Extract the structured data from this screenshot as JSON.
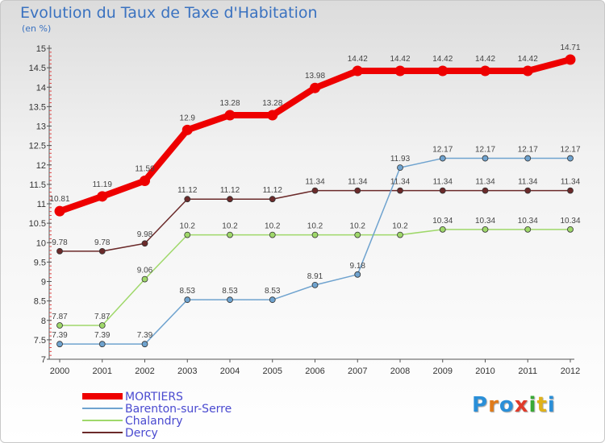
{
  "title": "Evolution du Taux de Taxe d'Habitation",
  "unit": "(en %)",
  "logo": {
    "text": "Proxiti",
    "letters": [
      {
        "ch": "P",
        "color": "#2a8fd8"
      },
      {
        "ch": "r",
        "color": "#e07b1a"
      },
      {
        "ch": "o",
        "color": "#2a8fd8"
      },
      {
        "ch": "x",
        "color": "#e03a2a"
      },
      {
        "ch": "i",
        "color": "#3aaa35"
      },
      {
        "ch": "t",
        "color": "#e0b21a"
      },
      {
        "ch": "i",
        "color": "#2a8fd8"
      }
    ]
  },
  "chart_data": {
    "type": "line",
    "x": [
      "2000",
      "2001",
      "2002",
      "2003",
      "2004",
      "2005",
      "2006",
      "2007",
      "2008",
      "2009",
      "2010",
      "2011",
      "2012"
    ],
    "ylim": [
      7,
      15
    ],
    "yticks": [
      "7",
      "7.5",
      "8",
      "8.5",
      "9",
      "9.5",
      "10",
      "10.5",
      "11",
      "11.5",
      "12",
      "12.5",
      "13",
      "13.5",
      "14",
      "14.5",
      "15"
    ],
    "grid": false,
    "legend_position": "bottom-left",
    "series": [
      {
        "name": "MORTIERS",
        "color": "#ee0000",
        "values": [
          10.81,
          11.19,
          11.59,
          12.9,
          13.28,
          13.28,
          13.98,
          14.42,
          14.42,
          14.42,
          14.42,
          14.42,
          14.71
        ],
        "labels": [
          "10.81",
          "11.19",
          "11.59",
          "12.9",
          "13.28",
          "13.28",
          "13.98",
          "14.42",
          "14.42",
          "14.42",
          "14.42",
          "14.42",
          "14.71"
        ]
      },
      {
        "name": "Barenton-sur-Serre",
        "color": "#6fa3cf",
        "values": [
          7.39,
          7.39,
          7.39,
          8.53,
          8.53,
          8.53,
          8.91,
          9.18,
          11.93,
          12.17,
          12.17,
          12.17,
          12.17
        ],
        "labels": [
          "7.39",
          "7.39",
          "7.39",
          "8.53",
          "8.53",
          "8.53",
          "8.91",
          "9.18",
          "11.93",
          "12.17",
          "12.17",
          "12.17",
          "12.17"
        ]
      },
      {
        "name": "Chalandry",
        "color": "#9fd86a",
        "values": [
          7.87,
          7.87,
          9.06,
          10.2,
          10.2,
          10.2,
          10.2,
          10.2,
          10.2,
          10.34,
          10.34,
          10.34,
          10.34
        ],
        "labels": [
          "7.87",
          "7.87",
          "9.06",
          "10.2",
          "10.2",
          "10.2",
          "10.2",
          "10.2",
          "10.2",
          "10.34",
          "10.34",
          "10.34",
          "10.34"
        ]
      },
      {
        "name": "Dercy",
        "color": "#6b2a2a",
        "values": [
          9.78,
          9.78,
          9.98,
          11.12,
          11.12,
          11.12,
          11.34,
          11.34,
          11.34,
          11.34,
          11.34,
          11.34,
          11.34
        ],
        "labels": [
          "9.78",
          "9.78",
          "9.98",
          "11.12",
          "11.12",
          "11.12",
          "11.34",
          "11.34",
          "11.34",
          "11.34",
          "11.34",
          "11.34",
          "11.34"
        ]
      }
    ]
  }
}
